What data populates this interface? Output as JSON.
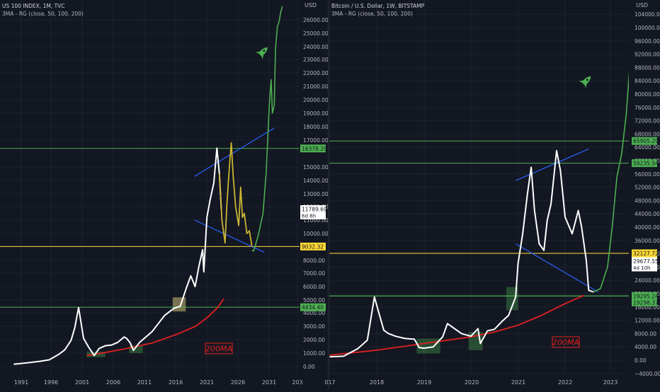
{
  "chart_data": [
    {
      "type": "line",
      "title": "US 100 INDEX, 1M, TVC",
      "indicator": "3MA - RG (close, 50, 100, 200)",
      "currency": "USD",
      "x_ticks": [
        "1991",
        "1996",
        "2001",
        "2006",
        "2011",
        "2016",
        "2021",
        "2026",
        "2031",
        "203"
      ],
      "y_ticks": [
        "0.00",
        "1000.00",
        "2000.00",
        "3000.00",
        "4000.00",
        "5000.00",
        "6000.00",
        "7000.00",
        "8000.00",
        "10000.00",
        "11000.00",
        "12000.00",
        "13000.00",
        "14000.00",
        "15000.00",
        "17000.00",
        "18000.00",
        "19000.00",
        "20000.00",
        "21000.00",
        "22000.00",
        "23000.00",
        "24000.00",
        "25000.00",
        "26000.00"
      ],
      "y_scale": "log",
      "ylim": [
        0,
        27000
      ],
      "xlim": [
        1989.5,
        2033
      ],
      "price_series": {
        "name": "",
        "x": [
          1989.8,
          1992,
          1994,
          1995.5,
          1997,
          1998,
          1999,
          1999.6,
          2000.0,
          2000.2,
          2001,
          2001.8,
          2002.7,
          2003.5,
          2004.5,
          2005.5,
          2006.5,
          2007.5,
          2007.9,
          2008.5,
          2009.0,
          2010,
          2011,
          2012,
          2013,
          2014,
          2015.5,
          2016.5,
          2017.5,
          2018.2,
          2018.9,
          2019.5,
          2020.1,
          2020.3,
          2020.8,
          2021.3,
          2021.9,
          2022.4,
          2022.8,
          2023.1
        ],
        "y": [
          170,
          280,
          390,
          500,
          900,
          1250,
          1950,
          2900,
          3900,
          4400,
          2100,
          1450,
          820,
          1350,
          1550,
          1600,
          1800,
          2200,
          2100,
          1750,
          1200,
          1800,
          2200,
          2600,
          3200,
          3800,
          4350,
          4500,
          5900,
          6800,
          6000,
          7500,
          8800,
          7100,
          11200,
          12500,
          13800,
          16400,
          14500,
          11800
        ]
      },
      "projection_yellow": {
        "x": [
          2022.8,
          2023.2,
          2023.7,
          2024.0,
          2024.4,
          2024.7,
          2025.0,
          2025.4,
          2025.9,
          2026.2,
          2026.5,
          2026.8,
          2027.2,
          2027.6,
          2027.9,
          2028.0
        ],
        "y": [
          14500,
          11000,
          9300,
          12200,
          15000,
          16800,
          14400,
          12000,
          10600,
          13500,
          11200,
          11500,
          10000,
          10200,
          9400,
          9032
        ]
      },
      "projection_green": {
        "x": [
          2028.0,
          2028.3,
          2029.0,
          2029.8,
          2030.3,
          2030.8,
          2031.1,
          2031.3,
          2031.6,
          2031.8,
          2032.1,
          2032.4,
          2032.6,
          2032.9
        ],
        "y": [
          8750,
          8700,
          9800,
          11500,
          14500,
          19500,
          21500,
          19000,
          19600,
          23800,
          25500,
          25900,
          26500,
          27000
        ]
      },
      "ma200": {
        "name": "200MA",
        "x": [
          2001.5,
          2004,
          2008,
          2012,
          2016,
          2019,
          2021,
          2022.5,
          2023.5
        ],
        "y": [
          820,
          1000,
          1350,
          1750,
          2400,
          3000,
          3700,
          4400,
          5100
        ]
      },
      "trendlines": [
        {
          "x": [
            2018.8,
            2031.6
          ],
          "y": [
            14300,
            17900
          ]
        },
        {
          "x": [
            2018.8,
            2030.0
          ],
          "y": [
            11000,
            8600
          ]
        }
      ],
      "horizontal_levels": [
        {
          "value": 16378.29,
          "label": "16378.29",
          "color": "#4caf50"
        },
        {
          "value": 9032.32,
          "label": "9032.32",
          "color": "#fdd835"
        },
        {
          "value": 4434.4,
          "label": "4434.40",
          "color": "#4caf50"
        }
      ],
      "current_price": {
        "value": 11789.69,
        "label": "11789.69",
        "countdown": "6d 8h"
      },
      "highlight_boxes": [
        {
          "x": [
            2001.5,
            2004.5
          ],
          "y": [
            700,
            1100
          ]
        },
        {
          "x": [
            2008.3,
            2010.5
          ],
          "y": [
            1000,
            1550
          ]
        },
        {
          "x": [
            2015.3,
            2017.4
          ],
          "y": [
            4100,
            5200
          ]
        }
      ],
      "annotation": "200MA",
      "rocket": {
        "x": 2029.8,
        "y": 23600
      }
    },
    {
      "type": "line",
      "title": "Bitcoin / U.S. Dollar, 1W, BITSTAMP",
      "indicator": "3MA - RG (close, 50, 100, 200)",
      "currency": "USD",
      "x_ticks": [
        "017",
        "2018",
        "2019",
        "2020",
        "2021",
        "2022",
        "2023"
      ],
      "y_ticks": [
        "−4000.00",
        "0.00",
        "4000.00",
        "8000.00",
        "12000.00",
        "16000.00",
        "20000.00",
        "24000.00",
        "28000.00",
        "32000.00",
        "36000.00",
        "40000.00",
        "44000.00",
        "48000.00",
        "52000.00",
        "56000.00",
        "60000.00",
        "64000.00",
        "68000.00",
        "72000.00",
        "76000.00",
        "80000.00",
        "84000.00",
        "88000.00",
        "92000.00",
        "96000.00",
        "100000.00",
        "104000.00"
      ],
      "y_scale": "linear",
      "ylim": [
        -4000,
        105000
      ],
      "xlim": [
        2017.0,
        2024.0
      ],
      "price_series": {
        "name": "",
        "x": [
          2017.0,
          2017.3,
          2017.6,
          2017.8,
          2017.95,
          2018.05,
          2018.15,
          2018.25,
          2018.4,
          2018.6,
          2018.8,
          2018.9,
          2019.0,
          2019.2,
          2019.4,
          2019.5,
          2019.6,
          2019.8,
          2020.0,
          2020.15,
          2020.2,
          2020.35,
          2020.5,
          2020.65,
          2020.8,
          2020.95,
          2021.0,
          2021.1,
          2021.2,
          2021.28,
          2021.35,
          2021.45,
          2021.55,
          2021.62,
          2021.7,
          2021.82,
          2021.9,
          2022.0,
          2022.15,
          2022.28,
          2022.35,
          2022.45,
          2022.5,
          2022.6
        ],
        "y": [
          1000,
          1200,
          3500,
          6000,
          19000,
          14000,
          9000,
          8000,
          7200,
          6500,
          6300,
          3800,
          3600,
          4000,
          7000,
          11000,
          10000,
          8000,
          7200,
          9500,
          5000,
          8800,
          9300,
          11500,
          13500,
          19000,
          29000,
          38000,
          50000,
          58000,
          45000,
          35000,
          33000,
          42000,
          47000,
          63000,
          57000,
          43000,
          38000,
          45000,
          40000,
          30000,
          21000,
          20500
        ]
      },
      "projection_green": {
        "x": [
          2022.6,
          2022.75,
          2022.9,
          2023.0,
          2023.1,
          2023.2,
          2023.3,
          2023.38,
          2023.45,
          2023.55,
          2023.65,
          2023.75,
          2023.85
        ],
        "y": [
          20500,
          21500,
          28000,
          40000,
          55000,
          62000,
          74000,
          90000,
          98000,
          84000,
          88000,
          104000,
          105000
        ]
      },
      "ma200": {
        "name": "200MA",
        "x": [
          2017.0,
          2018,
          2019,
          2020,
          2020.5,
          2021,
          2021.5,
          2022,
          2022.4
        ],
        "y": [
          1500,
          3000,
          5000,
          7000,
          8500,
          10500,
          13500,
          17000,
          19500
        ]
      },
      "trendlines": [
        {
          "x": [
            2020.95,
            2022.5
          ],
          "y": [
            54000,
            63500
          ]
        },
        {
          "x": [
            2020.95,
            2022.7
          ],
          "y": [
            35000,
            20500
          ]
        }
      ],
      "horizontal_levels": [
        {
          "value": 65905.29,
          "label": "65905.29",
          "color": "#4caf50"
        },
        {
          "value": 59235.54,
          "label": "59235.54",
          "color": "#4caf50"
        },
        {
          "value": 32127.72,
          "label": "32127.72",
          "color": "#fdd835"
        },
        {
          "value": 19295.24,
          "label": "19295.24",
          "color": "#4caf50"
        },
        {
          "value": 19298.37,
          "label": "19298.37",
          "color": "#4caf50"
        }
      ],
      "current_price": {
        "value": 29677.55,
        "label": "29677.55",
        "countdown": "4d 10h"
      },
      "highlight_boxes": [
        {
          "x": [
            2018.85,
            2019.35
          ],
          "y": [
            2000,
            6500
          ]
        },
        {
          "x": [
            2019.95,
            2020.25
          ],
          "y": [
            3000,
            8500
          ]
        },
        {
          "x": [
            2020.75,
            2021.0
          ],
          "y": [
            15000,
            22000
          ]
        }
      ],
      "annotation": "200MA",
      "rocket": {
        "x": 2022.45,
        "y": 84000
      }
    }
  ],
  "colors": {
    "background": "#131722",
    "grid": "#1e222d",
    "price": "#ffffff",
    "projection_yellow": "#cbb533",
    "projection_green": "#4caf50",
    "ma200": "#e0201f",
    "trendline": "#2962ff",
    "level_green": "#4caf50",
    "level_yellow": "#fdd835",
    "axis_text": "#b2b5be",
    "annotation": "#e0201f"
  }
}
